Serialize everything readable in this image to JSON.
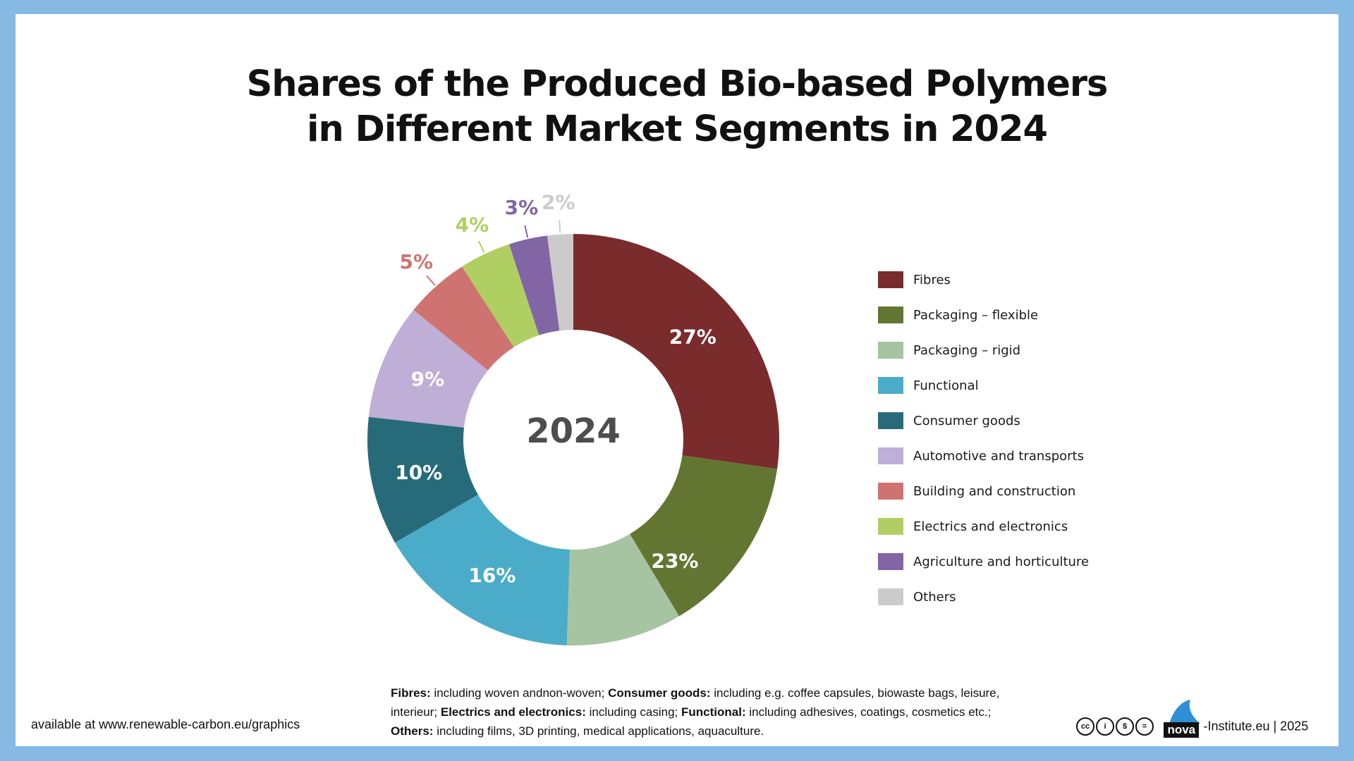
{
  "title_lines": [
    "Shares of the Produced Bio-based Polymers",
    "in Different Market Segments in 2024"
  ],
  "center_label": "2024",
  "chart_data": {
    "type": "pie",
    "donut": true,
    "title": "Shares of the Produced Bio-based Polymers in Different Market Segments in 2024",
    "categories": [
      "Fibres",
      "Packaging – flexible",
      "Packaging – rigid",
      "Functional",
      "Consumer goods",
      "Automotive and transports",
      "Building and construction",
      "Electrics and electronics",
      "Agriculture and horticulture",
      "Others"
    ],
    "values": [
      27,
      14,
      9,
      16,
      10,
      9,
      5,
      4,
      3,
      2
    ],
    "unit": "%",
    "data_labels": [
      {
        "text": "27%",
        "applies_to": [
          "Fibres"
        ]
      },
      {
        "text": "23%",
        "applies_to": [
          "Packaging – flexible",
          "Packaging – rigid"
        ]
      },
      {
        "text": "16%",
        "applies_to": [
          "Functional"
        ]
      },
      {
        "text": "10%",
        "applies_to": [
          "Consumer goods"
        ]
      },
      {
        "text": "9%",
        "applies_to": [
          "Automotive and transports"
        ]
      },
      {
        "text": "5%",
        "applies_to": [
          "Building and construction"
        ]
      },
      {
        "text": "4%",
        "applies_to": [
          "Electrics and electronics"
        ]
      },
      {
        "text": "3%",
        "applies_to": [
          "Agriculture and horticulture"
        ]
      },
      {
        "text": "2%",
        "applies_to": [
          "Others"
        ]
      }
    ],
    "colors": [
      "#7a2b2b",
      "#627631",
      "#a6c4a2",
      "#4aacc8",
      "#276b7b",
      "#bfaed6",
      "#cf7370",
      "#afcf63",
      "#8165a5",
      "#cbcbcb"
    ],
    "legend_position": "right"
  },
  "legend": [
    {
      "label": "Fibres",
      "color": "#7a2b2b"
    },
    {
      "label": "Packaging – flexible",
      "color": "#627631"
    },
    {
      "label": "Packaging – rigid",
      "color": "#a6c4a2"
    },
    {
      "label": "Functional",
      "color": "#4aacc8"
    },
    {
      "label": "Consumer goods",
      "color": "#276b7b"
    },
    {
      "label": "Automotive and transports",
      "color": "#bfaed6"
    },
    {
      "label": "Building and construction",
      "color": "#cf7370"
    },
    {
      "label": "Electrics and electronics",
      "color": "#afcf63"
    },
    {
      "label": "Agriculture and horticulture",
      "color": "#8165a5"
    },
    {
      "label": "Others",
      "color": "#cbcbcb"
    }
  ],
  "footnote": {
    "fibres_term": "Fibres:",
    "fibres_text": " including woven andnon-woven; ",
    "consumer_term": "Consumer goods:",
    "consumer_text": " including e.g. coffee capsules, biowaste bags, leisure,",
    "line2_start": "interieur; ",
    "electrics_term": "Electrics and electronics:",
    "electrics_text": " including casing; ",
    "functional_term": "Functional:",
    "functional_text": " including adhesives, coatings, cosmetics etc.;",
    "others_term": "Others:",
    "others_text": " including films, 3D printing, medical applications, aquaculture."
  },
  "source_note": "available at www.renewable-carbon.eu/graphics",
  "credit": {
    "license_icons": [
      "cc",
      "i",
      "$",
      "="
    ],
    "logo_text": "nova",
    "text": "-Institute.eu | 2025"
  }
}
